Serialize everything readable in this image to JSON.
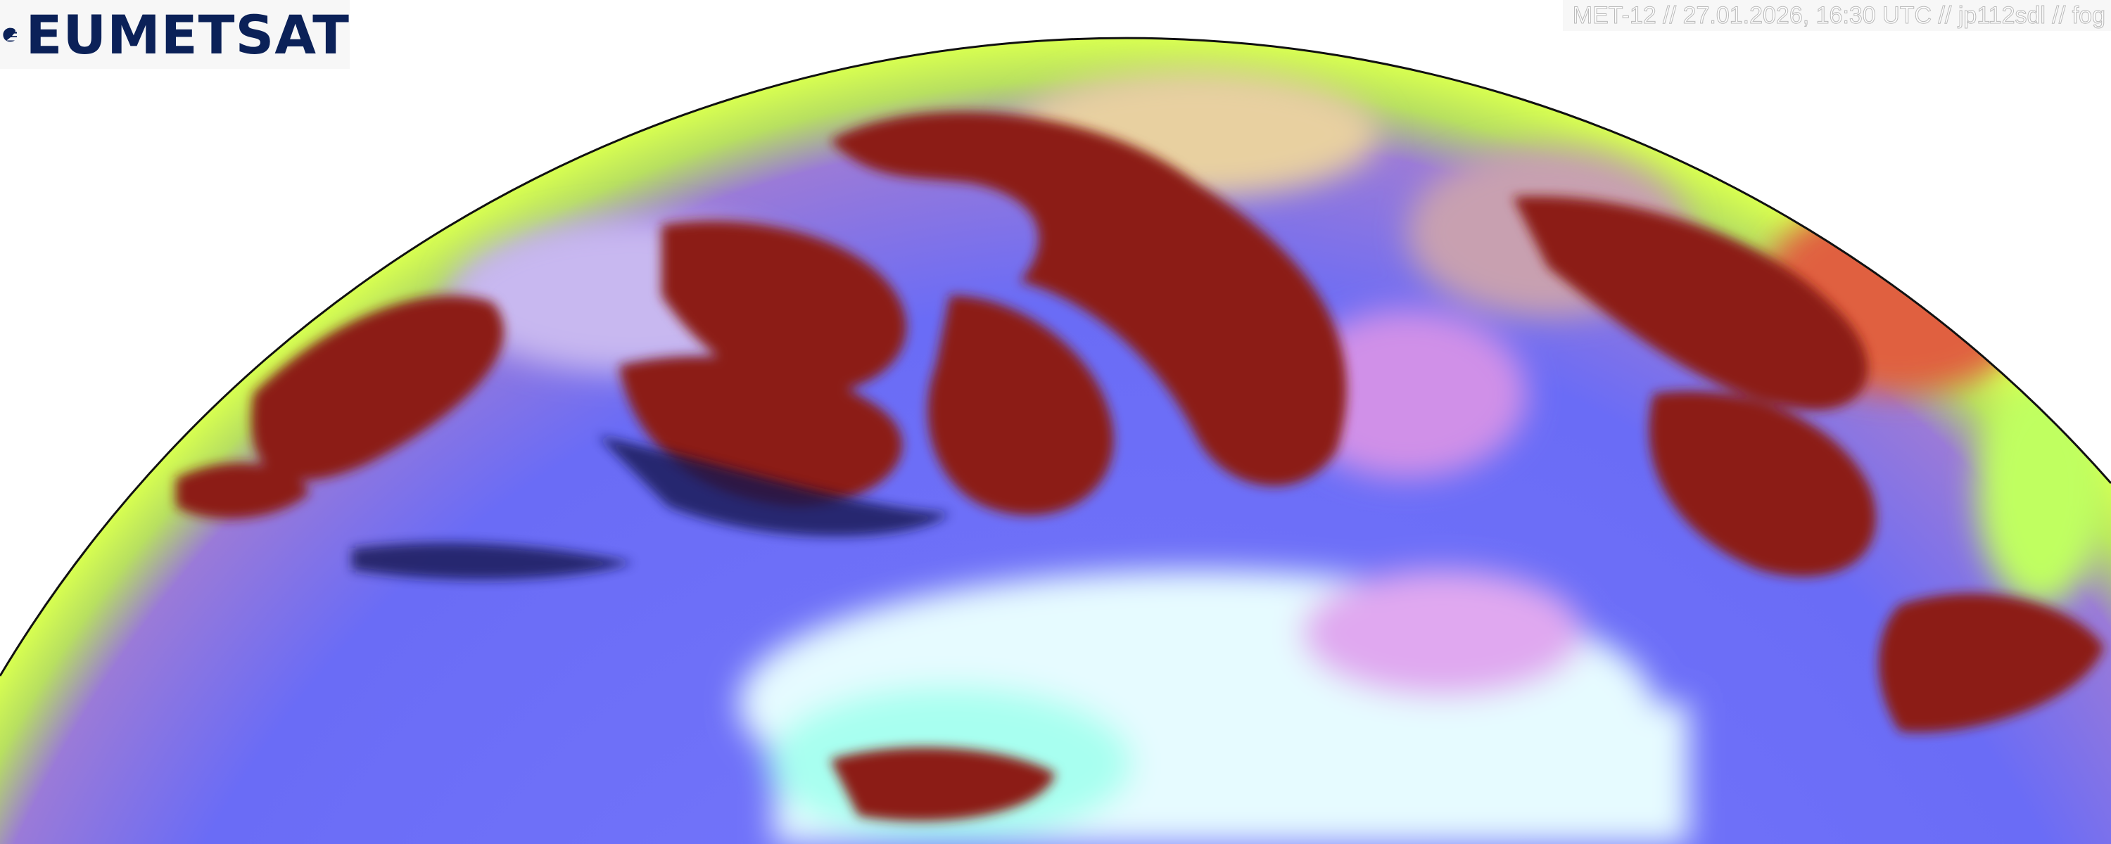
{
  "logo": {
    "text": "EUMETSAT",
    "color": "#0b2158"
  },
  "caption": "MET-12 // 27.01.2026, 16:30 UTC // jp112sdl // fog",
  "image": {
    "content": "satellite-earth-disc-rgb",
    "colors": {
      "clear-ocean": "#5a6cff",
      "cloud-red": "#8a1a10",
      "desert": "#dff8ff",
      "limb": "#c8ff40"
    }
  }
}
